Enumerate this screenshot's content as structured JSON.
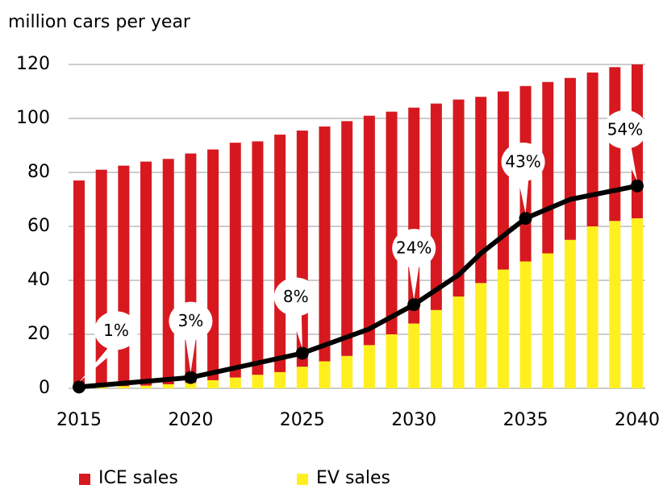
{
  "chart_data": {
    "type": "bar",
    "title": "million cars per year",
    "x": [
      2015,
      2016,
      2017,
      2018,
      2019,
      2020,
      2021,
      2022,
      2023,
      2024,
      2025,
      2026,
      2027,
      2028,
      2029,
      2030,
      2031,
      2032,
      2033,
      2034,
      2035,
      2036,
      2037,
      2038,
      2039,
      2040
    ],
    "stacked": true,
    "series": [
      {
        "name": "EV sales",
        "color": "#ffef1f",
        "values": [
          0.3,
          0.5,
          0.8,
          1,
          1.5,
          2,
          3,
          4,
          5,
          6,
          8,
          10,
          12,
          16,
          20,
          24,
          29,
          34,
          39,
          44,
          47,
          50,
          55,
          60,
          62,
          63
        ]
      },
      {
        "name": "ICE sales",
        "color": "#d7191f",
        "values": [
          76.7,
          80.5,
          81.7,
          83,
          83.5,
          85,
          85.5,
          87,
          86.5,
          88,
          87.5,
          87,
          87,
          85,
          82.5,
          80,
          76.5,
          73,
          69,
          66,
          65,
          63.5,
          60,
          57,
          57,
          57
        ]
      }
    ],
    "line": {
      "color": "#000000",
      "x": [
        2015,
        2020,
        2025,
        2028,
        2030,
        2032,
        2033,
        2035,
        2037,
        2040
      ],
      "values": [
        0.5,
        4,
        13,
        22,
        31,
        42,
        50,
        63,
        70,
        75
      ]
    },
    "annotations": [
      {
        "x": 2015,
        "label": "1%"
      },
      {
        "x": 2020,
        "label": "3%"
      },
      {
        "x": 2025,
        "label": "8%"
      },
      {
        "x": 2030,
        "label": "24%"
      },
      {
        "x": 2035,
        "label": "43%"
      },
      {
        "x": 2040,
        "label": "54%"
      }
    ],
    "xlim": [
      2015,
      2040
    ],
    "xticks": [
      2015,
      2020,
      2025,
      2030,
      2035,
      2040
    ],
    "ylim": [
      0,
      120
    ],
    "yticks": [
      0,
      20,
      40,
      60,
      80,
      100,
      120
    ],
    "grid": true,
    "legend": "bottom"
  }
}
